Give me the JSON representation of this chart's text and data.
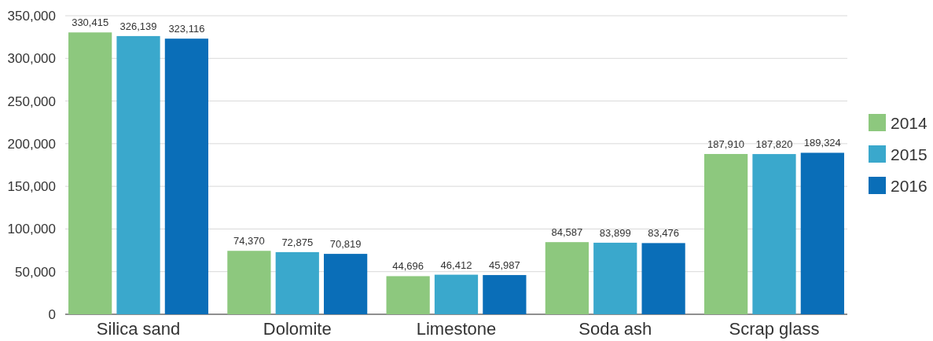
{
  "chart_data": {
    "type": "bar",
    "categories": [
      "Silica sand",
      "Dolomite",
      "Limestone",
      "Soda ash",
      "Scrap glass"
    ],
    "series": [
      {
        "name": "2014",
        "color": "#8dc87e",
        "values": [
          330415,
          74370,
          44696,
          84587,
          187910
        ],
        "value_labels": [
          "330,415",
          "74,370",
          "44,696",
          "84,587",
          "187,910"
        ]
      },
      {
        "name": "2015",
        "color": "#3aa8cc",
        "values": [
          326139,
          72875,
          46412,
          83899,
          187820
        ],
        "value_labels": [
          "326,139",
          "72,875",
          "46,412",
          "83,899",
          "187,820"
        ]
      },
      {
        "name": "2016",
        "color": "#0a6eb8",
        "values": [
          323116,
          70819,
          45987,
          83476,
          189324
        ],
        "value_labels": [
          "323,116",
          "70,819",
          "45,987",
          "83,476",
          "189,324"
        ]
      }
    ],
    "ylim": [
      0,
      350000
    ],
    "yticks": [
      {
        "value": 0,
        "label": "0"
      },
      {
        "value": 50000,
        "label": "50,000"
      },
      {
        "value": 100000,
        "label": "100,000"
      },
      {
        "value": 150000,
        "label": "150,000"
      },
      {
        "value": 200000,
        "label": "200,000"
      },
      {
        "value": 250000,
        "label": "250,000"
      },
      {
        "value": 300000,
        "label": "300,000"
      },
      {
        "value": 350000,
        "label": "350,000"
      }
    ],
    "grid": "y",
    "legend": "right"
  }
}
